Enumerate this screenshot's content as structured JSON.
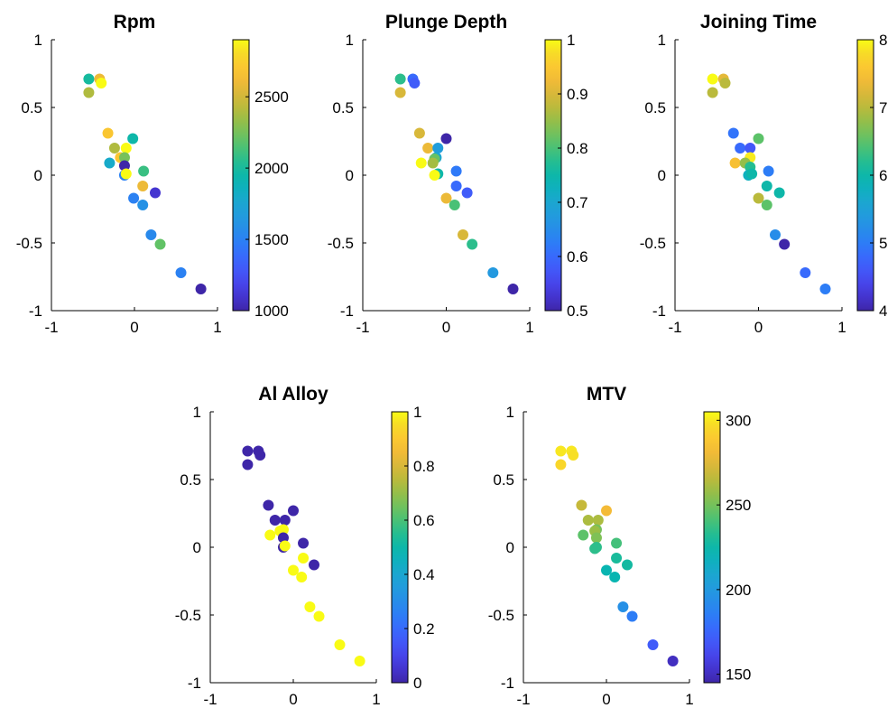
{
  "chart_data": [
    {
      "type": "scatter",
      "title": "Rpm",
      "xlim": [
        -1,
        1
      ],
      "ylim": [
        -1,
        1
      ],
      "xticks": [
        "-1",
        "0",
        "1"
      ],
      "yticks": [
        "-1",
        "-0.5",
        "0",
        "0.5",
        "1"
      ],
      "colorbar": {
        "range": [
          1000,
          2900
        ],
        "ticks": [
          "1000",
          "1500",
          "2000",
          "2500"
        ],
        "tick_values": [
          1000,
          1500,
          2000,
          2500
        ],
        "colormap": "parula"
      },
      "points": [
        {
          "x": -0.55,
          "y": 0.71,
          "c": 2000
        },
        {
          "x": -0.42,
          "y": 0.71,
          "c": 2600
        },
        {
          "x": -0.4,
          "y": 0.68,
          "c": 2900
        },
        {
          "x": -0.55,
          "y": 0.61,
          "c": 2400
        },
        {
          "x": -0.32,
          "y": 0.31,
          "c": 2700
        },
        {
          "x": -0.02,
          "y": 0.27,
          "c": 1950
        },
        {
          "x": -0.24,
          "y": 0.2,
          "c": 2400
        },
        {
          "x": -0.1,
          "y": 0.2,
          "c": 2900
        },
        {
          "x": -0.17,
          "y": 0.13,
          "c": 2700
        },
        {
          "x": -0.12,
          "y": 0.13,
          "c": 2250
        },
        {
          "x": -0.3,
          "y": 0.09,
          "c": 1800
        },
        {
          "x": -0.12,
          "y": 0.07,
          "c": 1000
        },
        {
          "x": 0.11,
          "y": 0.03,
          "c": 2100
        },
        {
          "x": -0.12,
          "y": 0.0,
          "c": 1500
        },
        {
          "x": -0.1,
          "y": 0.01,
          "c": 2900
        },
        {
          "x": 0.1,
          "y": -0.08,
          "c": 2600
        },
        {
          "x": 0.25,
          "y": -0.13,
          "c": 1100
        },
        {
          "x": -0.01,
          "y": -0.17,
          "c": 1500
        },
        {
          "x": 0.1,
          "y": -0.22,
          "c": 1600
        },
        {
          "x": 0.2,
          "y": -0.44,
          "c": 1550
        },
        {
          "x": 0.31,
          "y": -0.51,
          "c": 2200
        },
        {
          "x": 0.56,
          "y": -0.72,
          "c": 1500
        },
        {
          "x": 0.8,
          "y": -0.84,
          "c": 1000
        }
      ]
    },
    {
      "type": "scatter",
      "title": "Plunge Depth",
      "xlim": [
        -1,
        1
      ],
      "ylim": [
        -1,
        1
      ],
      "xticks": [
        "-1",
        "0",
        "1"
      ],
      "yticks": [
        "-1",
        "-0.5",
        "0",
        "0.5",
        "1"
      ],
      "colorbar": {
        "range": [
          0.5,
          1.0
        ],
        "ticks": [
          "0.5",
          "0.6",
          "0.7",
          "0.8",
          "0.9",
          "1"
        ],
        "tick_values": [
          0.5,
          0.6,
          0.7,
          0.8,
          0.9,
          1.0
        ],
        "colormap": "parula"
      },
      "points": [
        {
          "x": -0.55,
          "y": 0.71,
          "c": 0.78
        },
        {
          "x": -0.4,
          "y": 0.71,
          "c": 0.6
        },
        {
          "x": -0.38,
          "y": 0.68,
          "c": 0.58
        },
        {
          "x": -0.55,
          "y": 0.61,
          "c": 0.9
        },
        {
          "x": -0.32,
          "y": 0.31,
          "c": 0.9
        },
        {
          "x": 0.0,
          "y": 0.27,
          "c": 0.5
        },
        {
          "x": -0.22,
          "y": 0.2,
          "c": 0.92
        },
        {
          "x": -0.1,
          "y": 0.2,
          "c": 0.68
        },
        {
          "x": -0.12,
          "y": 0.13,
          "c": 0.7
        },
        {
          "x": -0.14,
          "y": 0.12,
          "c": 0.82
        },
        {
          "x": -0.3,
          "y": 0.09,
          "c": 1.0
        },
        {
          "x": -0.16,
          "y": 0.09,
          "c": 0.86
        },
        {
          "x": 0.12,
          "y": 0.03,
          "c": 0.62
        },
        {
          "x": -0.1,
          "y": 0.01,
          "c": 0.75
        },
        {
          "x": -0.14,
          "y": 0.0,
          "c": 1.0
        },
        {
          "x": 0.12,
          "y": -0.08,
          "c": 0.6
        },
        {
          "x": 0.25,
          "y": -0.13,
          "c": 0.58
        },
        {
          "x": 0.0,
          "y": -0.17,
          "c": 0.92
        },
        {
          "x": 0.1,
          "y": -0.22,
          "c": 0.8
        },
        {
          "x": 0.2,
          "y": -0.44,
          "c": 0.9
        },
        {
          "x": 0.31,
          "y": -0.51,
          "c": 0.78
        },
        {
          "x": 0.56,
          "y": -0.72,
          "c": 0.67
        },
        {
          "x": 0.8,
          "y": -0.84,
          "c": 0.5
        }
      ]
    },
    {
      "type": "scatter",
      "title": "Joining Time",
      "xlim": [
        -1,
        1
      ],
      "ylim": [
        -1,
        1
      ],
      "xticks": [
        "-1",
        "0",
        "1"
      ],
      "yticks": [
        "-1",
        "-0.5",
        "0",
        "0.5",
        "1"
      ],
      "colorbar": {
        "range": [
          4,
          8
        ],
        "ticks": [
          "8",
          "7",
          "6",
          "5",
          "4"
        ],
        "tick_values": [
          8,
          7,
          6,
          5,
          4
        ],
        "colormap": "parula"
      },
      "points": [
        {
          "x": -0.55,
          "y": 0.71,
          "c": 8.0
        },
        {
          "x": -0.42,
          "y": 0.71,
          "c": 7.3
        },
        {
          "x": -0.4,
          "y": 0.68,
          "c": 7.0
        },
        {
          "x": -0.55,
          "y": 0.61,
          "c": 7.0
        },
        {
          "x": -0.3,
          "y": 0.31,
          "c": 4.9
        },
        {
          "x": 0.0,
          "y": 0.27,
          "c": 6.5
        },
        {
          "x": -0.22,
          "y": 0.2,
          "c": 4.8
        },
        {
          "x": -0.1,
          "y": 0.2,
          "c": 4.6
        },
        {
          "x": -0.1,
          "y": 0.13,
          "c": 7.9
        },
        {
          "x": -0.28,
          "y": 0.09,
          "c": 7.5
        },
        {
          "x": -0.16,
          "y": 0.09,
          "c": 6.8
        },
        {
          "x": -0.1,
          "y": 0.06,
          "c": 6.2
        },
        {
          "x": 0.12,
          "y": 0.03,
          "c": 5.0
        },
        {
          "x": -0.12,
          "y": 0.0,
          "c": 5.8
        },
        {
          "x": -0.08,
          "y": 0.01,
          "c": 6.0
        },
        {
          "x": 0.1,
          "y": -0.08,
          "c": 6.0
        },
        {
          "x": 0.25,
          "y": -0.13,
          "c": 6.0
        },
        {
          "x": 0.0,
          "y": -0.17,
          "c": 7.0
        },
        {
          "x": 0.1,
          "y": -0.22,
          "c": 6.5
        },
        {
          "x": 0.2,
          "y": -0.44,
          "c": 5.2
        },
        {
          "x": 0.31,
          "y": -0.51,
          "c": 4.0
        },
        {
          "x": 0.56,
          "y": -0.72,
          "c": 4.8
        },
        {
          "x": 0.8,
          "y": -0.84,
          "c": 5.0
        }
      ]
    },
    {
      "type": "scatter",
      "title": "Al Alloy",
      "xlim": [
        -1,
        1
      ],
      "ylim": [
        -1,
        1
      ],
      "xticks": [
        "-1",
        "0",
        "1"
      ],
      "yticks": [
        "-1",
        "-0.5",
        "0",
        "0.5",
        "1"
      ],
      "colorbar": {
        "range": [
          0,
          1
        ],
        "ticks": [
          "0",
          "0.2",
          "0.4",
          "0.6",
          "0.8",
          "1"
        ],
        "tick_values": [
          0,
          0.2,
          0.4,
          0.6,
          0.8,
          1.0
        ],
        "colormap": "parula"
      },
      "points": [
        {
          "x": -0.55,
          "y": 0.71,
          "c": 0
        },
        {
          "x": -0.42,
          "y": 0.71,
          "c": 0
        },
        {
          "x": -0.4,
          "y": 0.68,
          "c": 0
        },
        {
          "x": -0.55,
          "y": 0.61,
          "c": 0
        },
        {
          "x": -0.3,
          "y": 0.31,
          "c": 0
        },
        {
          "x": 0.0,
          "y": 0.27,
          "c": 0
        },
        {
          "x": -0.22,
          "y": 0.2,
          "c": 0
        },
        {
          "x": -0.1,
          "y": 0.2,
          "c": 0
        },
        {
          "x": -0.12,
          "y": 0.13,
          "c": 1
        },
        {
          "x": -0.16,
          "y": 0.12,
          "c": 1
        },
        {
          "x": -0.28,
          "y": 0.09,
          "c": 1
        },
        {
          "x": -0.12,
          "y": 0.07,
          "c": 0
        },
        {
          "x": 0.12,
          "y": 0.03,
          "c": 0
        },
        {
          "x": -0.12,
          "y": 0.0,
          "c": 0
        },
        {
          "x": -0.1,
          "y": 0.01,
          "c": 1
        },
        {
          "x": 0.12,
          "y": -0.08,
          "c": 1
        },
        {
          "x": 0.25,
          "y": -0.13,
          "c": 0
        },
        {
          "x": 0.0,
          "y": -0.17,
          "c": 1
        },
        {
          "x": 0.1,
          "y": -0.22,
          "c": 1
        },
        {
          "x": 0.2,
          "y": -0.44,
          "c": 1
        },
        {
          "x": 0.31,
          "y": -0.51,
          "c": 1
        },
        {
          "x": 0.56,
          "y": -0.72,
          "c": 1
        },
        {
          "x": 0.8,
          "y": -0.84,
          "c": 1
        }
      ]
    },
    {
      "type": "scatter",
      "title": "MTV",
      "xlim": [
        -1,
        1
      ],
      "ylim": [
        -1,
        1
      ],
      "xticks": [
        "-1",
        "0",
        "1"
      ],
      "yticks": [
        "-1",
        "-0.5",
        "0",
        "0.5",
        "1"
      ],
      "colorbar": {
        "range": [
          145,
          305
        ],
        "ticks": [
          "150",
          "200",
          "250",
          "300"
        ],
        "tick_values": [
          150,
          200,
          250,
          300
        ],
        "colormap": "parula"
      },
      "points": [
        {
          "x": -0.55,
          "y": 0.71,
          "c": 300
        },
        {
          "x": -0.42,
          "y": 0.71,
          "c": 300
        },
        {
          "x": -0.4,
          "y": 0.68,
          "c": 298
        },
        {
          "x": -0.55,
          "y": 0.61,
          "c": 295
        },
        {
          "x": -0.3,
          "y": 0.31,
          "c": 268
        },
        {
          "x": 0.0,
          "y": 0.27,
          "c": 282
        },
        {
          "x": -0.22,
          "y": 0.2,
          "c": 262
        },
        {
          "x": -0.1,
          "y": 0.2,
          "c": 262
        },
        {
          "x": -0.12,
          "y": 0.13,
          "c": 250
        },
        {
          "x": -0.14,
          "y": 0.12,
          "c": 258
        },
        {
          "x": -0.28,
          "y": 0.09,
          "c": 245
        },
        {
          "x": -0.12,
          "y": 0.07,
          "c": 252
        },
        {
          "x": 0.12,
          "y": 0.03,
          "c": 240
        },
        {
          "x": -0.12,
          "y": 0.0,
          "c": 235
        },
        {
          "x": -0.14,
          "y": -0.01,
          "c": 235
        },
        {
          "x": 0.12,
          "y": -0.08,
          "c": 230
        },
        {
          "x": 0.25,
          "y": -0.13,
          "c": 228
        },
        {
          "x": 0.0,
          "y": -0.17,
          "c": 222
        },
        {
          "x": 0.1,
          "y": -0.22,
          "c": 222
        },
        {
          "x": 0.2,
          "y": -0.44,
          "c": 195
        },
        {
          "x": 0.31,
          "y": -0.51,
          "c": 185
        },
        {
          "x": 0.56,
          "y": -0.72,
          "c": 170
        },
        {
          "x": 0.8,
          "y": -0.84,
          "c": 150
        }
      ]
    }
  ]
}
